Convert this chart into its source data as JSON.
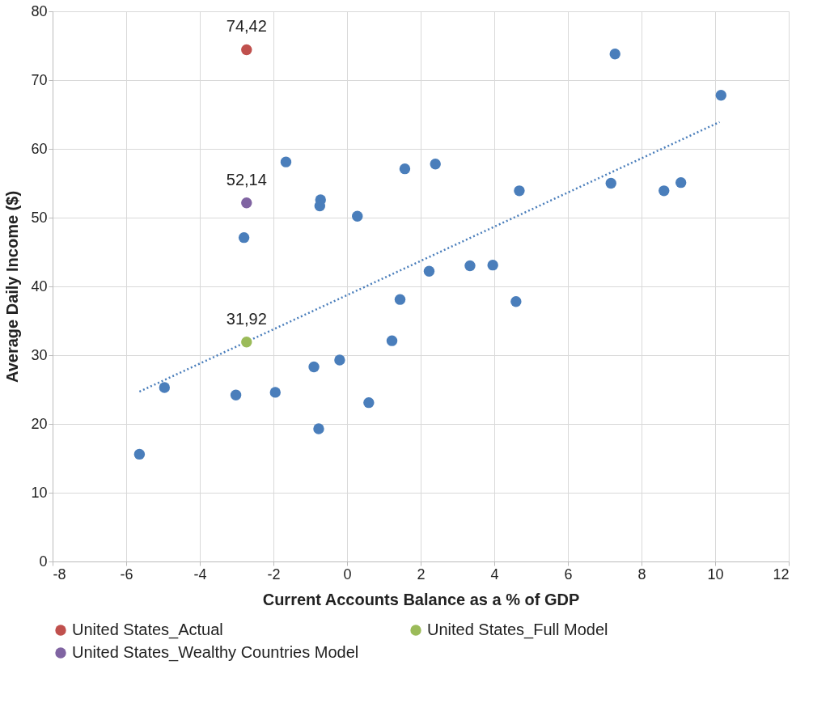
{
  "chart_data": {
    "type": "scatter",
    "xlabel": "Current Accounts Balance as a % of GDP",
    "ylabel": "Average Daily Income ($)",
    "xlim": [
      -8,
      12
    ],
    "xticks": [
      -8,
      -6,
      -4,
      -2,
      0,
      2,
      4,
      6,
      8,
      10,
      12
    ],
    "ylim": [
      0,
      80
    ],
    "yticks": [
      0,
      10,
      20,
      30,
      40,
      50,
      60,
      70,
      80
    ],
    "grid": true,
    "legend": "bottom",
    "marker": "circle",
    "series": [
      {
        "color": "#4a7ebb",
        "x": [
          -5.64,
          -4.96,
          -3.02,
          -2.8,
          -1.95,
          -1.66,
          -0.9,
          -0.77,
          -0.72,
          -0.74,
          -0.2,
          0.28,
          0.59,
          1.22,
          1.44,
          1.57,
          2.23,
          2.4,
          3.34,
          3.96,
          4.59,
          4.68,
          7.17,
          7.28,
          8.61,
          9.07,
          10.16
        ],
        "values": [
          15.6,
          25.3,
          24.2,
          47.1,
          24.6,
          58.1,
          28.3,
          19.3,
          52.6,
          51.7,
          29.3,
          50.2,
          23.1,
          32.1,
          38.1,
          57.1,
          42.2,
          57.8,
          43.0,
          43.1,
          37.8,
          53.9,
          55.0,
          73.8,
          53.9,
          55.1,
          67.8
        ]
      },
      {
        "type": "line",
        "line_style": "dotted",
        "marker": "none",
        "color": "#4a7ebb",
        "x": [
          -5.64,
          10.12
        ],
        "values": [
          24.7,
          63.9
        ]
      },
      {
        "name": "United States_Actual",
        "color": "#c0504d",
        "x": [
          -2.73
        ],
        "values": [
          74.42
        ],
        "value_labels": [
          "74,42"
        ]
      },
      {
        "name": "United States_Full Model",
        "color": "#9bbb59",
        "x": [
          -2.73
        ],
        "values": [
          31.92
        ],
        "value_labels": [
          "31,92"
        ]
      },
      {
        "name": "United States_Wealthy Countries Model",
        "color": "#8064a2",
        "x": [
          -2.73
        ],
        "values": [
          52.14
        ],
        "value_labels": [
          "52,14"
        ]
      }
    ]
  }
}
